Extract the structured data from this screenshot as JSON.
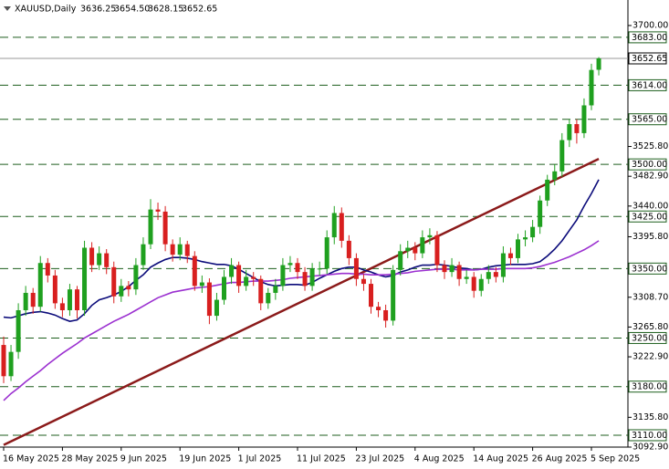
{
  "chart_data": {
    "type": "candlestick",
    "title": "XAUUSD,Daily",
    "header_values": [
      "3636.25",
      "3654.50",
      "3628.15",
      "3652.65"
    ],
    "categories": [
      "16 May 2025",
      null,
      null,
      null,
      null,
      null,
      null,
      null,
      "28 May 2025",
      null,
      null,
      null,
      null,
      null,
      null,
      null,
      "9 Jun 2025",
      null,
      null,
      null,
      null,
      null,
      null,
      null,
      "19 Jun 2025",
      null,
      null,
      null,
      null,
      null,
      null,
      null,
      "1 Jul 2025",
      null,
      null,
      null,
      null,
      null,
      null,
      null,
      "11 Jul 2025",
      null,
      null,
      null,
      null,
      null,
      null,
      null,
      "23 Jul 2025",
      null,
      null,
      null,
      null,
      null,
      null,
      null,
      "4 Aug 2025",
      null,
      null,
      null,
      null,
      null,
      null,
      null,
      "14 Aug 2025",
      null,
      null,
      null,
      null,
      null,
      null,
      null,
      "26 Aug 2025",
      null,
      null,
      null,
      null,
      null,
      null,
      null,
      "5 Sep 2025",
      null
    ],
    "open": [
      3240,
      3195,
      3230,
      3290,
      3315,
      3295,
      3358,
      3340,
      3300,
      3290,
      3320,
      3290,
      3380,
      3355,
      3372,
      3352,
      3310,
      3325,
      3320,
      3355,
      3385,
      3435,
      3432,
      3385,
      3370,
      3385,
      3368,
      3325,
      3330,
      3282,
      3305,
      3338,
      3355,
      3325,
      3338,
      3335,
      3300,
      3315,
      3325,
      3355,
      3358,
      3345,
      3325,
      3350,
      3350,
      3395,
      3430,
      3390,
      3365,
      3335,
      3328,
      3295,
      3290,
      3275,
      3348,
      3375,
      3380,
      3372,
      3395,
      3398,
      3355,
      3345,
      3355,
      3335,
      3338,
      3318,
      3335,
      3345,
      3338,
      3372,
      3365,
      3392,
      3395,
      3410,
      3448,
      3478,
      3490,
      3535,
      3558,
      3545,
      3585,
      3636.25
    ],
    "high": [
      3252,
      3240,
      3300,
      3325,
      3322,
      3368,
      3365,
      3348,
      3308,
      3328,
      3325,
      3390,
      3388,
      3382,
      3378,
      3360,
      3335,
      3332,
      3365,
      3395,
      3450,
      3445,
      3440,
      3392,
      3395,
      3390,
      3375,
      3340,
      3336,
      3315,
      3348,
      3365,
      3360,
      3348,
      3345,
      3340,
      3322,
      3335,
      3365,
      3368,
      3365,
      3352,
      3358,
      3360,
      3405,
      3440,
      3438,
      3398,
      3372,
      3342,
      3335,
      3302,
      3298,
      3355,
      3385,
      3390,
      3388,
      3405,
      3408,
      3404,
      3362,
      3365,
      3360,
      3348,
      3345,
      3342,
      3355,
      3352,
      3382,
      3380,
      3400,
      3405,
      3420,
      3455,
      3485,
      3500,
      3545,
      3565,
      3565,
      3595,
      3645,
      3654.5
    ],
    "low": [
      3185,
      3188,
      3220,
      3282,
      3285,
      3288,
      3330,
      3292,
      3280,
      3282,
      3278,
      3282,
      3345,
      3348,
      3342,
      3300,
      3302,
      3310,
      3312,
      3348,
      3378,
      3420,
      3375,
      3360,
      3362,
      3358,
      3318,
      3315,
      3270,
      3275,
      3298,
      3328,
      3315,
      3318,
      3325,
      3290,
      3292,
      3305,
      3318,
      3345,
      3335,
      3318,
      3318,
      3340,
      3342,
      3385,
      3380,
      3355,
      3325,
      3318,
      3285,
      3280,
      3265,
      3268,
      3340,
      3365,
      3362,
      3365,
      3385,
      3345,
      3335,
      3338,
      3325,
      3328,
      3308,
      3310,
      3328,
      3330,
      3330,
      3355,
      3358,
      3382,
      3388,
      3400,
      3440,
      3470,
      3482,
      3525,
      3530,
      3538,
      3578,
      3628.15
    ],
    "close": [
      3195,
      3230,
      3290,
      3315,
      3295,
      3358,
      3340,
      3300,
      3290,
      3320,
      3290,
      3380,
      3355,
      3372,
      3352,
      3310,
      3325,
      3320,
      3355,
      3385,
      3435,
      3432,
      3385,
      3370,
      3385,
      3368,
      3325,
      3330,
      3282,
      3305,
      3338,
      3355,
      3325,
      3338,
      3335,
      3300,
      3315,
      3325,
      3355,
      3358,
      3345,
      3325,
      3350,
      3350,
      3395,
      3430,
      3390,
      3365,
      3335,
      3328,
      3295,
      3290,
      3275,
      3348,
      3375,
      3380,
      3372,
      3395,
      3398,
      3355,
      3345,
      3355,
      3335,
      3338,
      3318,
      3335,
      3345,
      3338,
      3372,
      3365,
      3392,
      3395,
      3410,
      3448,
      3478,
      3490,
      3535,
      3558,
      3545,
      3585,
      3636,
      3652.65
    ],
    "up_color": "#1fa01f",
    "down_color": "#d81f1f",
    "series": [
      {
        "type": "line",
        "color": "#0b0b7a",
        "values": [
          3280,
          3279,
          3282,
          3285,
          3287,
          3288,
          3286,
          3283,
          3278,
          3274,
          3276,
          3285,
          3297,
          3305,
          3308,
          3312,
          3317,
          3324,
          3333,
          3341,
          3352,
          3358,
          3363,
          3366,
          3366,
          3365,
          3363,
          3360,
          3358,
          3356,
          3356,
          3354,
          3349,
          3343,
          3337,
          3331,
          3327,
          3325,
          3326,
          3327,
          3327,
          3326,
          3330,
          3336,
          3341,
          3346,
          3350,
          3352,
          3352,
          3348,
          3345,
          3341,
          3338,
          3340,
          3345,
          3348,
          3352,
          3355,
          3355,
          3356,
          3355,
          3353,
          3351,
          3350,
          3348,
          3349,
          3352,
          3354,
          3355,
          3356,
          3356,
          3356,
          3357,
          3360,
          3368,
          3378,
          3390,
          3405,
          3420,
          3440,
          3458,
          3478
        ]
      },
      {
        "type": "line",
        "color": "#9b30d0",
        "values": [
          3160,
          3170,
          3178,
          3187,
          3195,
          3203,
          3212,
          3220,
          3228,
          3235,
          3242,
          3250,
          3256,
          3262,
          3268,
          3274,
          3279,
          3284,
          3290,
          3296,
          3302,
          3308,
          3312,
          3316,
          3318,
          3320,
          3322,
          3323,
          3324,
          3326,
          3328,
          3330,
          3330,
          3331,
          3332,
          3332,
          3332,
          3333,
          3334,
          3336,
          3337,
          3338,
          3339,
          3340,
          3341,
          3342,
          3343,
          3343,
          3342,
          3342,
          3341,
          3341,
          3341,
          3342,
          3343,
          3344,
          3346,
          3347,
          3348,
          3349,
          3349,
          3349,
          3348,
          3348,
          3348,
          3349,
          3349,
          3349,
          3350,
          3350,
          3350,
          3350,
          3351,
          3353,
          3356,
          3359,
          3363,
          3367,
          3372,
          3377,
          3383,
          3390
        ]
      }
    ],
    "trendline": {
      "color": "#8b1a1a",
      "index": [
        0,
        81
      ],
      "values": [
        3096,
        3508
      ]
    },
    "levels": [
      {
        "value": 3683,
        "label": "3683.00"
      },
      {
        "value": 3614,
        "label": "3614.00"
      },
      {
        "value": 3565,
        "label": "3565.00"
      },
      {
        "value": 3500,
        "label": "3500.00"
      },
      {
        "value": 3425,
        "label": "3425.00"
      },
      {
        "value": 3350,
        "label": "3350.00"
      },
      {
        "value": 3250,
        "label": "3250.00"
      },
      {
        "value": 3180,
        "label": "3180.00"
      },
      {
        "value": 3110,
        "label": "3110.00"
      }
    ],
    "level_color": "#1d5e1d",
    "last_price": 3652.65,
    "ylim": [
      3092.9,
      3723.6
    ],
    "yticks": [
      {
        "value": 3700,
        "label": "3700.00"
      },
      {
        "value": 3525.8,
        "label": "3525.80"
      },
      {
        "value": 3482.9,
        "label": "3482.90"
      },
      {
        "value": 3440,
        "label": "3440.00"
      },
      {
        "value": 3395.8,
        "label": "3395.80"
      },
      {
        "value": 3308.7,
        "label": "3308.70"
      },
      {
        "value": 3265.8,
        "label": "3265.80"
      },
      {
        "value": 3222.9,
        "label": "3222.90"
      },
      {
        "value": 3135.8,
        "label": "3135.80"
      },
      {
        "value": 3092.9,
        "label": "3092.90"
      }
    ]
  }
}
